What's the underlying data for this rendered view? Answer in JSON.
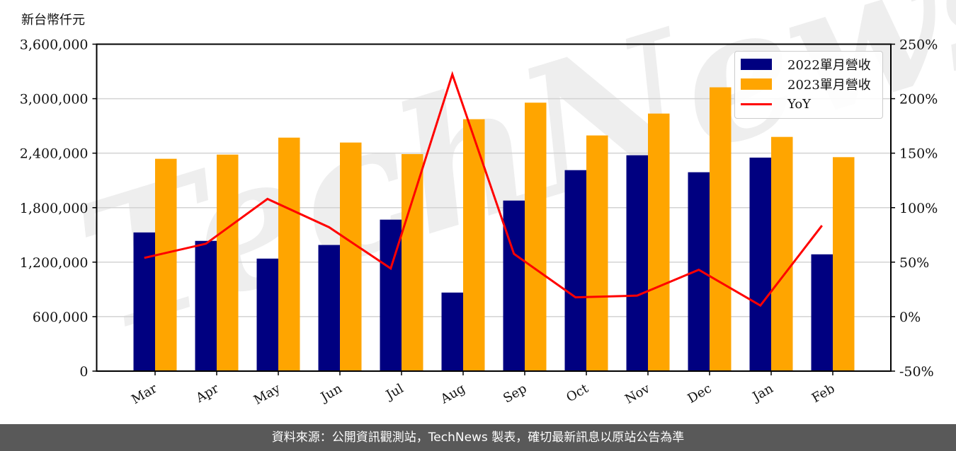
{
  "chart_data": {
    "type": "bar",
    "title": "",
    "ylabel": "新台幣仟元",
    "y2label": "",
    "xlabel": "",
    "categories": [
      "Mar",
      "Apr",
      "May",
      "Jun",
      "Jul",
      "Aug",
      "Sep",
      "Oct",
      "Nov",
      "Dec",
      "Jan",
      "Feb"
    ],
    "series": [
      {
        "name": "2022單月營收",
        "type": "bar",
        "axis": "left",
        "color": "#000080",
        "values": [
          1527000,
          1434000,
          1239000,
          1389000,
          1668000,
          865000,
          1878000,
          2213000,
          2377000,
          2190000,
          2351000,
          1286000
        ]
      },
      {
        "name": "2023單月營收",
        "type": "bar",
        "axis": "left",
        "color": "#FFA500",
        "values": [
          2338000,
          2384000,
          2571000,
          2517000,
          2390000,
          2774000,
          2956000,
          2595000,
          2836000,
          3125000,
          2579000,
          2356000
        ]
      },
      {
        "name": "YoY",
        "type": "line",
        "axis": "right",
        "color": "#FF0000",
        "values": [
          53.9,
          66.9,
          108.0,
          82.0,
          44.2,
          222.3,
          57.6,
          17.7,
          19.3,
          43.0,
          10.2,
          83.6
        ]
      }
    ],
    "ylim": [
      0,
      3600000
    ],
    "yticks": [
      0,
      600000,
      1200000,
      1800000,
      2400000,
      3000000,
      3600000
    ],
    "ytick_labels": [
      "0",
      "600,000",
      "1,200,000",
      "1,800,000",
      "2,400,000",
      "3,000,000",
      "3,600,000"
    ],
    "y2lim": [
      -50,
      250
    ],
    "y2ticks": [
      -50,
      0,
      50,
      100,
      150,
      200,
      250
    ],
    "y2tick_labels": [
      "-50%",
      "0%",
      "50%",
      "100%",
      "150%",
      "200%",
      "250%"
    ],
    "grid": true,
    "legend_position": "upper right",
    "watermark": "TechNews"
  },
  "header": {
    "unit": "新台幣仟元"
  },
  "legend": {
    "items": [
      {
        "label": "2022單月營收"
      },
      {
        "label": "2023單月營收"
      },
      {
        "label": "YoY"
      }
    ]
  },
  "footer": {
    "text": "資料來源：公開資訊觀測站，TechNews 製表，確切最新訊息以原站公告為準"
  }
}
